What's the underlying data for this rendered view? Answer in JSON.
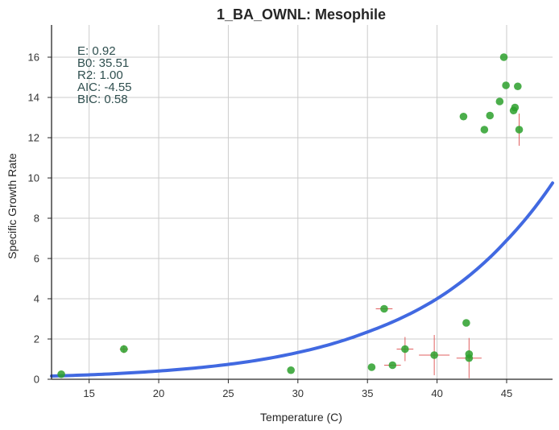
{
  "chart_data": {
    "type": "scatter",
    "title": "1_BA_OWNL: Mesophile",
    "xlabel": "Temperature (C)",
    "ylabel": "Specific Growth Rate",
    "xlim": [
      12.3,
      48.3
    ],
    "ylim": [
      0,
      17.6
    ],
    "x_ticks": [
      15,
      20,
      25,
      30,
      35,
      40,
      45
    ],
    "y_ticks": [
      0,
      2,
      4,
      6,
      8,
      10,
      12,
      14,
      16
    ],
    "grid": true,
    "annotations": [
      "E:  0.92",
      "B0:  35.51",
      "R2:  1.00",
      "AIC: -4.55",
      "BIC: 0.58"
    ],
    "points": [
      {
        "x": 13.0,
        "y": 0.25,
        "xerr": 0,
        "yerr": 0
      },
      {
        "x": 17.5,
        "y": 1.5,
        "xerr": 0.3,
        "yerr": 0.2
      },
      {
        "x": 29.5,
        "y": 0.45,
        "xerr": 0,
        "yerr": 0
      },
      {
        "x": 35.3,
        "y": 0.6,
        "xerr": 0,
        "yerr": 0
      },
      {
        "x": 36.8,
        "y": 0.7,
        "xerr": 0.6,
        "yerr": 0
      },
      {
        "x": 36.2,
        "y": 3.5,
        "xerr": 0.6,
        "yerr": 0
      },
      {
        "x": 37.7,
        "y": 1.5,
        "xerr": 0.6,
        "yerr": 0.6
      },
      {
        "x": 39.8,
        "y": 1.2,
        "xerr": 1.1,
        "yerr": 1.0
      },
      {
        "x": 42.1,
        "y": 2.8,
        "xerr": 0,
        "yerr": 0
      },
      {
        "x": 42.3,
        "y": 1.05,
        "xerr": 0.9,
        "yerr": 1.0
      },
      {
        "x": 42.3,
        "y": 1.25,
        "xerr": 0,
        "yerr": 0
      },
      {
        "x": 41.9,
        "y": 13.05,
        "xerr": 0,
        "yerr": 0
      },
      {
        "x": 43.4,
        "y": 12.4,
        "xerr": 0,
        "yerr": 0
      },
      {
        "x": 43.8,
        "y": 13.1,
        "xerr": 0,
        "yerr": 0
      },
      {
        "x": 44.5,
        "y": 13.8,
        "xerr": 0,
        "yerr": 0
      },
      {
        "x": 44.8,
        "y": 16.0,
        "xerr": 0,
        "yerr": 0
      },
      {
        "x": 44.95,
        "y": 14.6,
        "xerr": 0,
        "yerr": 0
      },
      {
        "x": 45.5,
        "y": 13.35,
        "xerr": 0,
        "yerr": 0
      },
      {
        "x": 45.6,
        "y": 13.5,
        "xerr": 0,
        "yerr": 0
      },
      {
        "x": 45.8,
        "y": 14.55,
        "xerr": 0,
        "yerr": 0
      },
      {
        "x": 45.9,
        "y": 12.4,
        "xerr": 0,
        "yerr": 0.8
      }
    ],
    "fit_curve": {
      "model": "arrhenius",
      "x": [
        12.3,
        15,
        20,
        25,
        30,
        35,
        40,
        45,
        48.3
      ],
      "y": [
        0.16,
        0.22,
        0.41,
        0.74,
        1.33,
        2.35,
        4.0,
        6.9,
        9.75
      ]
    },
    "colors": {
      "points": "#2ca02c",
      "error_bars": "#e06060",
      "fit_line": "#4169e1",
      "grid": "#cccccc",
      "axis": "#262626",
      "annotation_text": "#2f4f4f"
    }
  }
}
